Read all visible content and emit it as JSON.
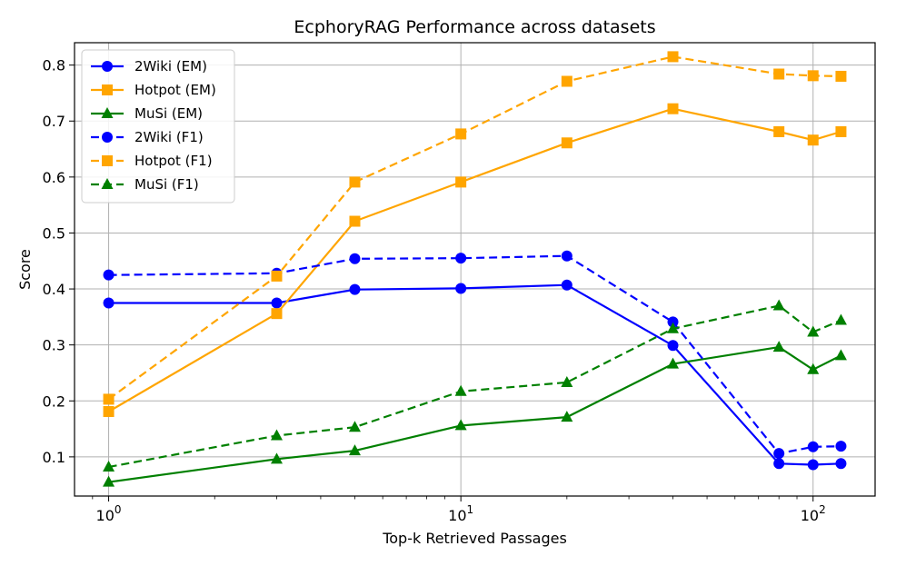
{
  "chart_data": {
    "type": "line",
    "title": "EcphoryRAG Performance across datasets",
    "xlabel": "Top-k Retrieved Passages",
    "ylabel": "Score",
    "xscale": "log",
    "xlim": [
      0.8,
      150
    ],
    "ylim": [
      0.03,
      0.84
    ],
    "grid": true,
    "legend_position": "top-left",
    "x": [
      1,
      3,
      5,
      10,
      20,
      40,
      80,
      100,
      120
    ],
    "x_ticks": [
      {
        "value": 1,
        "base": "10",
        "exp": "0"
      },
      {
        "value": 10,
        "base": "10",
        "exp": "1"
      },
      {
        "value": 100,
        "base": "10",
        "exp": "2"
      }
    ],
    "y_ticks": [
      {
        "value": 0.1,
        "label": "0.1"
      },
      {
        "value": 0.2,
        "label": "0.2"
      },
      {
        "value": 0.3,
        "label": "0.3"
      },
      {
        "value": 0.4,
        "label": "0.4"
      },
      {
        "value": 0.5,
        "label": "0.5"
      },
      {
        "value": 0.6,
        "label": "0.6"
      },
      {
        "value": 0.7,
        "label": "0.7"
      },
      {
        "value": 0.8,
        "label": "0.8"
      }
    ],
    "series": [
      {
        "name": "2Wiki (EM)",
        "color": "#0000ff",
        "linestyle": "solid",
        "marker": "circle",
        "values": [
          0.375,
          0.375,
          0.399,
          0.401,
          0.407,
          0.299,
          0.088,
          0.086,
          0.088
        ]
      },
      {
        "name": "Hotpot (EM)",
        "color": "#ffa500",
        "linestyle": "solid",
        "marker": "square",
        "values": [
          0.181,
          0.356,
          0.521,
          0.591,
          0.661,
          0.722,
          0.681,
          0.666,
          0.681
        ]
      },
      {
        "name": "MuSi (EM)",
        "color": "#008000",
        "linestyle": "solid",
        "marker": "triangle",
        "values": [
          0.055,
          0.096,
          0.111,
          0.156,
          0.171,
          0.266,
          0.296,
          0.256,
          0.281
        ]
      },
      {
        "name": "2Wiki (F1)",
        "color": "#0000ff",
        "linestyle": "dashed",
        "marker": "circle",
        "values": [
          0.425,
          0.428,
          0.454,
          0.455,
          0.459,
          0.341,
          0.106,
          0.118,
          0.119
        ]
      },
      {
        "name": "Hotpot (F1)",
        "color": "#ffa500",
        "linestyle": "dashed",
        "marker": "square",
        "values": [
          0.203,
          0.423,
          0.591,
          0.677,
          0.771,
          0.815,
          0.784,
          0.781,
          0.78
        ]
      },
      {
        "name": "MuSi (F1)",
        "color": "#008000",
        "linestyle": "dashed",
        "marker": "triangle",
        "values": [
          0.082,
          0.138,
          0.153,
          0.217,
          0.233,
          0.329,
          0.37,
          0.323,
          0.344
        ]
      }
    ]
  }
}
